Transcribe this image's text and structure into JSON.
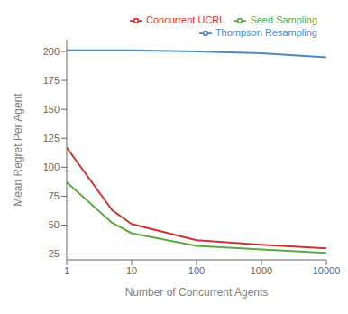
{
  "chart_data": {
    "type": "line",
    "xlabel": "Number of Concurrent Agents",
    "ylabel": "Mean Regret Per Agent",
    "log": "x",
    "xlim": [
      1,
      10000
    ],
    "xticks": [
      1,
      10,
      100,
      1000,
      10000
    ],
    "ylim": [
      20,
      210
    ],
    "yticks": [
      25,
      50,
      75,
      100,
      125,
      150,
      175,
      200
    ],
    "legend": "upper right",
    "grid": false,
    "series": [
      {
        "name": "Thompson Resampling",
        "color": "#4c8cbf",
        "x": [
          1,
          10,
          100,
          1000,
          10000
        ],
        "values": [
          201,
          201,
          200,
          198.5,
          195
        ]
      },
      {
        "name": "Seed Sampling",
        "color": "#5aaa3f",
        "x": [
          1,
          5,
          10,
          100,
          1000,
          10000
        ],
        "values": [
          87,
          52,
          43,
          32,
          29,
          26
        ]
      },
      {
        "name": "Concurrent UCRL",
        "color": "#cc3333",
        "x": [
          1,
          5,
          10,
          100,
          1000,
          10000
        ],
        "values": [
          117,
          63,
          51,
          37,
          33,
          30
        ]
      }
    ]
  }
}
